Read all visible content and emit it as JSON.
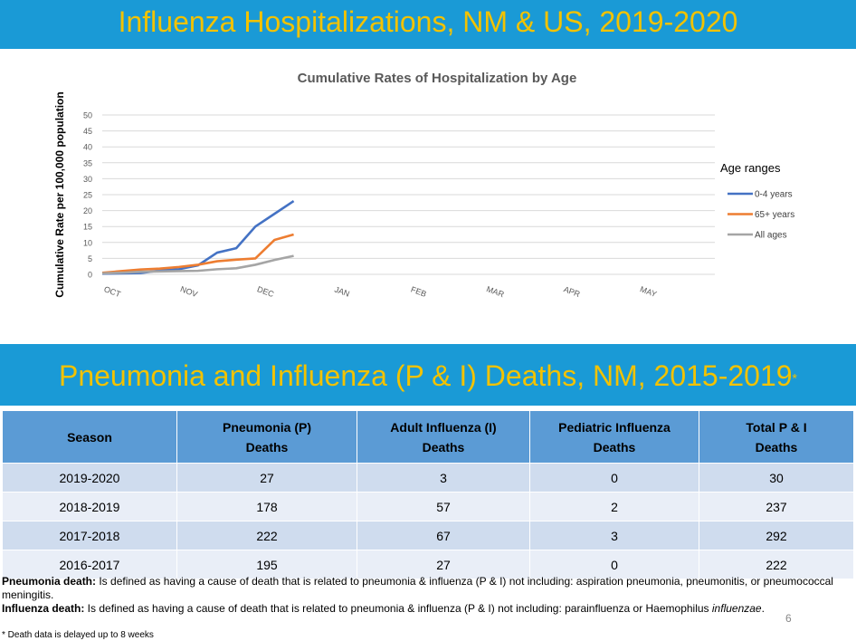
{
  "header": {
    "title": "Influenza Hospitalizations, NM & US, 2019-2020",
    "section_title": "Pneumonia and Influenza (P & I) Deaths, NM, 2015-2019",
    "section_star": "*"
  },
  "chart_data": {
    "type": "line",
    "title": "Cumulative Rates of Hospitalization by Age",
    "ylabel": "Cumulative Rate per 100,000 population",
    "xlabel": "",
    "ylim": [
      0,
      50
    ],
    "yticks": [
      0,
      5,
      10,
      15,
      20,
      25,
      30,
      35,
      40,
      45,
      50
    ],
    "months": [
      "OCT",
      "NOV",
      "DEC",
      "JAN",
      "FEB",
      "MAR",
      "APR",
      "MAY"
    ],
    "legend_title": "Age ranges",
    "legend_position": "right",
    "grid": true,
    "series": [
      {
        "name": "0-4 years",
        "color": "#4472c4",
        "x": [
          0,
          0.25,
          0.5,
          0.75,
          1.0,
          1.25,
          1.5,
          1.75,
          2.0,
          2.25,
          2.5
        ],
        "values": [
          0.2,
          0.3,
          0.4,
          1.2,
          1.6,
          2.8,
          6.8,
          8.2,
          15.0,
          19.0,
          23.0
        ]
      },
      {
        "name": "65+ years",
        "color": "#ed7d31",
        "x": [
          0,
          0.25,
          0.5,
          0.75,
          1.0,
          1.25,
          1.5,
          1.75,
          2.0,
          2.25,
          2.5
        ],
        "values": [
          0.5,
          1.0,
          1.5,
          1.8,
          2.3,
          3.0,
          4.1,
          4.6,
          5.0,
          10.8,
          12.5
        ]
      },
      {
        "name": "All ages",
        "color": "#a5a5a5",
        "x": [
          0,
          0.25,
          0.5,
          0.75,
          1.0,
          1.25,
          1.5,
          1.75,
          2.0,
          2.25,
          2.5
        ],
        "values": [
          0.3,
          0.5,
          0.8,
          0.9,
          1.0,
          1.1,
          1.6,
          1.9,
          3.0,
          4.5,
          5.8
        ]
      }
    ]
  },
  "table": {
    "headers": [
      [
        "Season",
        ""
      ],
      [
        "Pneumonia (P)",
        "Deaths"
      ],
      [
        "Adult Influenza (I)",
        "Deaths"
      ],
      [
        "Pediatric Influenza",
        "Deaths"
      ],
      [
        "Total P & I",
        "Deaths"
      ]
    ],
    "rows": [
      [
        "2019-2020",
        "27",
        "3",
        "0",
        "30"
      ],
      [
        "2018-2019",
        "178",
        "57",
        "2",
        "237"
      ],
      [
        "2017-2018",
        "222",
        "67",
        "3",
        "292"
      ],
      [
        "2016-2017",
        "195",
        "27",
        "0",
        "222"
      ]
    ]
  },
  "notes": {
    "pneumonia_label": "Pneumonia death:",
    "pneumonia_text": " Is defined as having a cause of death that is related to pneumonia & influenza (P & I) not including: aspiration pneumonia, pneumonitis,  or pneumococcal meningitis.",
    "influenza_label": "Influenza death:",
    "influenza_text": " Is defined as having a cause of death that is related to pneumonia & influenza (P & I) not including: parainfluenza or Haemophilus ",
    "influenza_italic": "influenzae",
    "influenza_end": ".",
    "footnote": "* Death data is delayed up to 8 weeks",
    "page_number": "6"
  }
}
